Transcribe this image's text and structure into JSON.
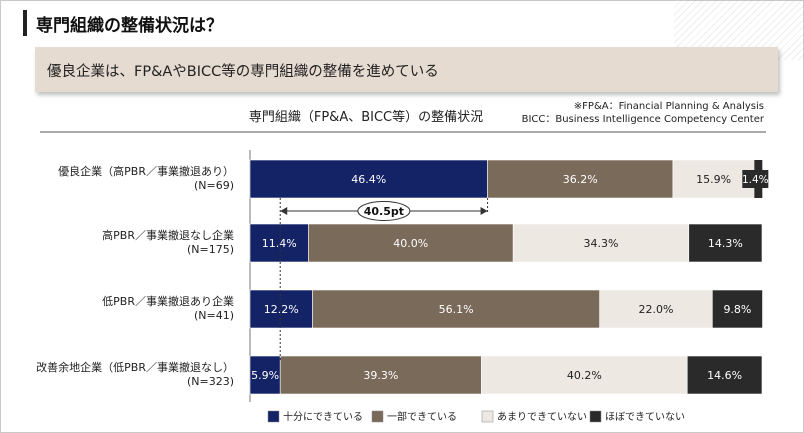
{
  "page": {
    "title": "専門組織の整備状況は？",
    "banner": "優良企業は、FP&AやBICC等の専門組織の整備を進めている",
    "footnotes": [
      "※FP&A：Financial Planning & Analysis",
      "BICC：Business Intelligence Competency Center"
    ]
  },
  "colors": {
    "full": "#142266",
    "partial": "#7a6a5a",
    "little": "#ede8e1",
    "none": "#2a2a2a"
  },
  "chart_data": {
    "type": "bar",
    "orientation": "horizontal-stacked-100",
    "title": "専門組織（FP&A、BICC等）の整備状況",
    "categories": [
      [
        "優良企業（高PBR／事業撤退あり）",
        "(N=69)"
      ],
      [
        "高PBR／事業撤退なし企業",
        "(N=175)"
      ],
      [
        "低PBR／事業撤退あり企業",
        "(N=41)"
      ],
      [
        "改善余地企業（低PBR／事業撤退なし）",
        "(N=323)"
      ]
    ],
    "series": [
      {
        "name": "十分にできている",
        "color": "#142266",
        "values": [
          46.4,
          11.4,
          12.2,
          5.9
        ],
        "labels": [
          "46.4%",
          "11.4%",
          "12.2%",
          "5.9%"
        ]
      },
      {
        "name": "一部できている",
        "color": "#7a6a5a",
        "values": [
          36.2,
          40.0,
          56.1,
          39.3
        ],
        "labels": [
          "36.2%",
          "40.0%",
          "56.1%",
          "39.3%"
        ]
      },
      {
        "name": "あまりできていない",
        "color": "#ede8e1",
        "values": [
          15.9,
          34.3,
          22.0,
          40.2
        ],
        "labels": [
          "15.9%",
          "34.3%",
          "22.0%",
          "40.2%"
        ]
      },
      {
        "name": "ほぼできていない",
        "color": "#2a2a2a",
        "values": [
          1.4,
          14.3,
          9.8,
          14.6
        ],
        "labels": [
          "1.4%",
          "14.3%",
          "9.8%",
          "14.6%"
        ]
      }
    ],
    "xlim": [
      0,
      100
    ],
    "annotation": {
      "text": "40.5pt",
      "from_value": 5.9,
      "to_value": 46.4
    },
    "legend_position": "bottom"
  }
}
